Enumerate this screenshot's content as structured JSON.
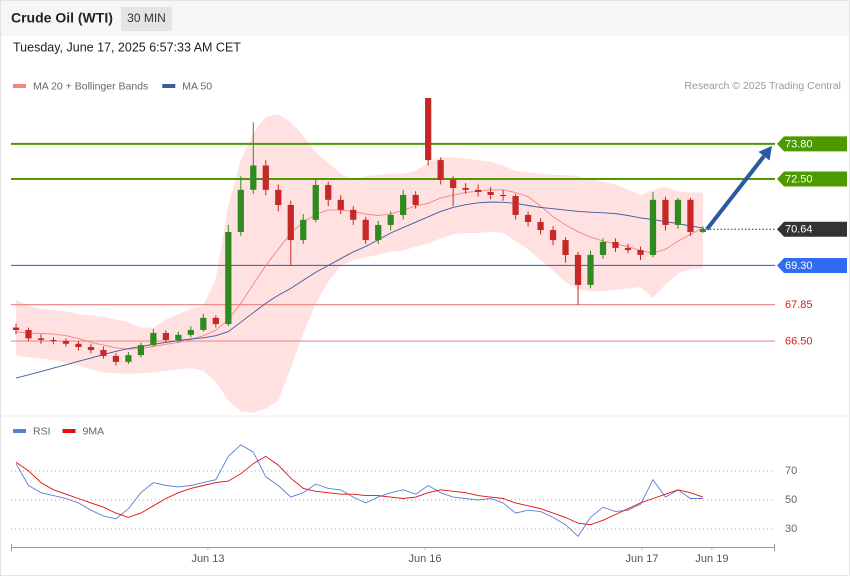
{
  "header": {
    "title": "Crude Oil (WTI)",
    "timeframe": "30 MIN",
    "timestamp": "Tuesday, June 17, 2025 6:57:33 AM CET",
    "credit": "Research © 2025 Trading Central"
  },
  "chart_data": [
    {
      "type": "candlestick",
      "xlim": [
        -0.4,
        60.77
      ],
      "ylim": [
        63.8,
        75.5
      ],
      "up_color": "#2f8a1f",
      "down_color": "#c62828",
      "open": [
        67.0,
        66.91,
        66.6,
        66.54,
        66.5,
        66.4,
        66.28,
        66.17,
        65.95,
        65.73,
        65.98,
        66.35,
        66.8,
        66.54,
        66.73,
        66.91,
        67.36,
        67.13,
        70.54,
        72.1,
        73.0,
        72.1,
        71.54,
        70.24,
        70.99,
        72.28,
        71.73,
        71.36,
        70.99,
        70.24,
        70.8,
        71.17,
        71.91,
        75.5,
        73.2,
        72.47,
        72.17,
        72.1,
        72.02,
        71.91,
        71.87,
        71.17,
        70.91,
        70.61,
        70.24,
        69.69,
        68.58,
        69.69,
        70.17,
        69.95,
        69.87,
        69.69,
        71.73,
        70.8,
        71.73,
        70.54
      ],
      "high": [
        67.15,
        67.0,
        66.75,
        66.65,
        66.6,
        66.5,
        66.4,
        66.3,
        66.05,
        66.1,
        66.45,
        66.95,
        66.9,
        66.85,
        67.05,
        67.5,
        67.45,
        70.8,
        72.6,
        74.6,
        73.2,
        72.3,
        71.7,
        71.2,
        72.5,
        72.4,
        71.9,
        71.5,
        71.1,
        70.95,
        71.3,
        72.1,
        72.05,
        75.5,
        73.3,
        72.6,
        72.35,
        72.3,
        72.2,
        72.1,
        71.95,
        71.3,
        71.05,
        70.75,
        70.35,
        69.8,
        69.85,
        70.3,
        70.3,
        70.1,
        70.0,
        72.02,
        71.85,
        71.8,
        71.8,
        70.75
      ],
      "low": [
        66.75,
        66.5,
        66.4,
        66.38,
        66.3,
        66.15,
        66.05,
        65.85,
        65.6,
        65.65,
        65.9,
        66.3,
        66.45,
        66.45,
        66.65,
        66.85,
        67.0,
        67.05,
        70.4,
        71.95,
        71.9,
        71.3,
        69.3,
        70.1,
        70.9,
        71.5,
        71.2,
        70.8,
        70.1,
        70.1,
        70.6,
        71.0,
        71.4,
        73.0,
        72.3,
        71.5,
        71.95,
        71.85,
        71.75,
        71.7,
        71.0,
        70.75,
        70.45,
        70.05,
        69.4,
        67.84,
        68.45,
        69.55,
        69.8,
        69.75,
        69.5,
        69.6,
        70.6,
        70.65,
        70.4,
        70.5
      ],
      "close": [
        66.91,
        66.6,
        66.54,
        66.5,
        66.4,
        66.28,
        66.17,
        65.95,
        65.73,
        65.98,
        66.35,
        66.8,
        66.54,
        66.73,
        66.91,
        67.36,
        67.13,
        70.54,
        72.1,
        73.0,
        72.1,
        71.54,
        70.24,
        70.99,
        72.28,
        71.73,
        71.36,
        70.99,
        70.24,
        70.8,
        71.17,
        71.91,
        71.54,
        73.2,
        72.47,
        72.17,
        72.1,
        72.02,
        71.91,
        71.87,
        71.17,
        70.91,
        70.61,
        70.24,
        69.69,
        68.58,
        69.69,
        70.17,
        69.95,
        69.87,
        69.69,
        71.73,
        70.8,
        71.73,
        70.54,
        70.64
      ],
      "series": [
        {
          "name": "MA 20 + Bollinger Bands",
          "color": "#f4857e",
          "band_color": "#ffdede",
          "values": [
            66.84,
            66.8,
            66.78,
            66.76,
            66.7,
            66.6,
            66.45,
            66.35,
            66.25,
            66.2,
            66.22,
            66.3,
            66.38,
            66.45,
            66.55,
            66.7,
            66.9,
            67.3,
            67.9,
            68.6,
            69.3,
            69.9,
            70.5,
            70.9,
            71.2,
            71.35,
            71.35,
            71.3,
            71.2,
            71.15,
            71.2,
            71.35,
            71.5,
            71.6,
            71.8,
            71.9,
            72.0,
            72.05,
            72.1,
            72.1,
            72.0,
            71.85,
            71.5,
            71.1,
            70.8,
            70.55,
            70.35,
            70.2,
            70.1,
            70.0,
            69.85,
            69.75,
            69.9,
            70.2,
            70.45,
            70.69
          ],
          "upper": [
            68.02,
            67.8,
            67.7,
            67.65,
            67.6,
            67.5,
            67.45,
            67.4,
            67.3,
            67.2,
            67.0,
            67.0,
            67.3,
            67.5,
            67.7,
            67.8,
            68.8,
            71.5,
            73.2,
            74.2,
            74.8,
            74.9,
            74.6,
            74.1,
            73.5,
            73.1,
            72.7,
            72.5,
            72.6,
            72.65,
            72.7,
            72.7,
            72.8,
            73.1,
            73.3,
            73.3,
            73.25,
            73.2,
            73.15,
            73.0,
            72.8,
            72.75,
            72.7,
            72.65,
            72.65,
            72.6,
            72.5,
            72.4,
            72.3,
            72.1,
            71.9,
            72.1,
            72.2,
            72.05,
            72.0,
            72.0
          ],
          "lower": [
            65.98,
            65.9,
            65.85,
            65.8,
            65.7,
            65.6,
            65.45,
            65.35,
            65.3,
            65.3,
            65.3,
            65.35,
            65.4,
            65.45,
            65.5,
            65.4,
            65.0,
            64.3,
            63.9,
            63.85,
            64.0,
            64.3,
            65.5,
            66.8,
            67.9,
            68.7,
            69.3,
            69.5,
            69.6,
            69.7,
            69.8,
            69.85,
            70.0,
            70.1,
            70.3,
            70.45,
            70.5,
            70.5,
            70.55,
            70.5,
            70.2,
            69.9,
            69.5,
            69.1,
            68.7,
            68.4,
            68.35,
            68.35,
            68.4,
            68.45,
            68.5,
            68.1,
            68.6,
            69.0,
            69.15,
            69.2
          ]
        },
        {
          "name": "MA 50",
          "color": "#3a5b9c",
          "values": [
            65.13,
            65.25,
            65.37,
            65.5,
            65.62,
            65.75,
            65.87,
            66.0,
            66.12,
            66.22,
            66.3,
            66.38,
            66.45,
            66.52,
            66.58,
            66.62,
            66.7,
            66.85,
            67.2,
            67.55,
            67.9,
            68.2,
            68.45,
            68.75,
            69.05,
            69.3,
            69.55,
            69.8,
            70.0,
            70.25,
            70.5,
            70.7,
            70.9,
            71.1,
            71.3,
            71.45,
            71.55,
            71.62,
            71.65,
            71.64,
            71.6,
            71.52,
            71.45,
            71.4,
            71.35,
            71.3,
            71.27,
            71.25,
            71.22,
            71.15,
            71.06,
            71.0,
            70.92,
            70.85,
            70.76,
            70.69
          ]
        }
      ],
      "levels": [
        {
          "value": 73.8,
          "label": "73.80",
          "color": "#4c9a00",
          "style": "box"
        },
        {
          "value": 72.5,
          "label": "72.50",
          "color": "#4c9a00",
          "style": "box"
        },
        {
          "value": 69.3,
          "label": "69.30",
          "color": "#2f6cf0",
          "style": "box"
        },
        {
          "value": 67.85,
          "label": "67.85",
          "color": "#f08c8c",
          "style": "text"
        },
        {
          "value": 66.5,
          "label": "66.50",
          "color": "#f08c8c",
          "style": "text"
        }
      ],
      "last": {
        "value": 70.64,
        "label": "70.64",
        "color": "#333333"
      },
      "arrow_color": "#2c5aa0"
    },
    {
      "type": "line",
      "xlim": [
        -0.4,
        60.77
      ],
      "ylim": [
        19,
        92
      ],
      "yticks": [
        30,
        50,
        70
      ],
      "xticks": [
        {
          "value": 15.37,
          "label": "Jun 13"
        },
        {
          "value": 32.75,
          "label": "Jun 16"
        },
        {
          "value": 50.12,
          "label": "Jun 17"
        },
        {
          "value": 55.72,
          "label": "Jun 19"
        }
      ],
      "grid": true,
      "series": [
        {
          "name": "RSI",
          "color": "#5b7fd6",
          "values": [
            75,
            60,
            55,
            53,
            51,
            48,
            43,
            39,
            37,
            44,
            55,
            62,
            60,
            59,
            60,
            62,
            64,
            80,
            88,
            83,
            66,
            60,
            52,
            55,
            61,
            58,
            57,
            52,
            48,
            52,
            55,
            57,
            54,
            60,
            55,
            52,
            51,
            50,
            51,
            48,
            41,
            43,
            42,
            38,
            33,
            25,
            38,
            45,
            42,
            43,
            47,
            64,
            52,
            57,
            51,
            51
          ]
        },
        {
          "name": "9MA",
          "color": "#e01010",
          "values": [
            76,
            70,
            62,
            57,
            54,
            51,
            48,
            45,
            41,
            38,
            41,
            46,
            51,
            55,
            58,
            60,
            62,
            63,
            68,
            75,
            80,
            74,
            65,
            58,
            56,
            55,
            54,
            54,
            53,
            53,
            52,
            51,
            52,
            55,
            57,
            56,
            55,
            53,
            52,
            51,
            48,
            46,
            44,
            41,
            38,
            34,
            33,
            36,
            40,
            44,
            48,
            51,
            54,
            57,
            55,
            52
          ]
        }
      ]
    }
  ]
}
